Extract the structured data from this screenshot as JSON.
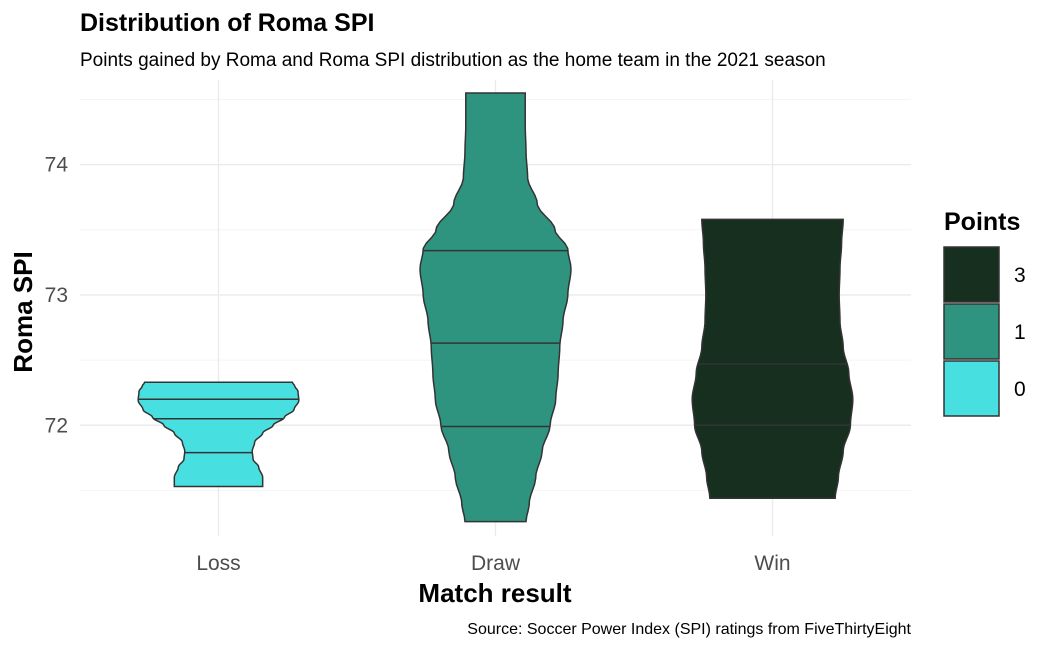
{
  "chart_data": {
    "type": "violin",
    "title": "Distribution of Roma SPI",
    "subtitle": "Points gained by Roma and Roma SPI distribution as the home team in the 2021 season",
    "caption": "Source: Soccer Power Index (SPI) ratings from FiveThirtyEight",
    "xlabel": "Match result",
    "ylabel": "Roma SPI",
    "ylim": [
      71.15,
      74.65
    ],
    "y_ticks": [
      72,
      73,
      74
    ],
    "grid": true,
    "legend": {
      "title": "Points",
      "placement": "right"
    },
    "categories": [
      "Loss",
      "Draw",
      "Win"
    ],
    "series": [
      {
        "category": "Loss",
        "points": "0",
        "color": "#48dfe0",
        "y_min": 71.53,
        "y_max": 72.33,
        "quantiles": [
          71.79,
          72.05,
          72.2
        ],
        "density_profile": [
          [
            71.53,
            0.55
          ],
          [
            71.6,
            0.55
          ],
          [
            71.68,
            0.5
          ],
          [
            71.74,
            0.43
          ],
          [
            71.8,
            0.42
          ],
          [
            71.87,
            0.45
          ],
          [
            71.94,
            0.55
          ],
          [
            72.0,
            0.68
          ],
          [
            72.06,
            0.82
          ],
          [
            72.12,
            0.94
          ],
          [
            72.19,
            1.0
          ],
          [
            72.26,
            0.99
          ],
          [
            72.3,
            0.95
          ],
          [
            72.33,
            0.92
          ]
        ]
      },
      {
        "category": "Draw",
        "points": "1",
        "color": "#2e9480",
        "y_min": 71.26,
        "y_max": 74.55,
        "quantiles": [
          71.99,
          72.63,
          73.34
        ],
        "density_profile": [
          [
            71.26,
            0.38
          ],
          [
            71.4,
            0.42
          ],
          [
            71.6,
            0.5
          ],
          [
            71.8,
            0.58
          ],
          [
            72.0,
            0.68
          ],
          [
            72.2,
            0.75
          ],
          [
            72.4,
            0.78
          ],
          [
            72.6,
            0.8
          ],
          [
            72.8,
            0.84
          ],
          [
            73.0,
            0.9
          ],
          [
            73.2,
            0.94
          ],
          [
            73.35,
            0.9
          ],
          [
            73.5,
            0.74
          ],
          [
            73.7,
            0.52
          ],
          [
            73.9,
            0.4
          ],
          [
            74.1,
            0.38
          ],
          [
            74.3,
            0.37
          ],
          [
            74.55,
            0.37
          ]
        ]
      },
      {
        "category": "Win",
        "points": "3",
        "color": "#172f1f",
        "y_min": 71.44,
        "y_max": 73.58,
        "quantiles": [
          72.0,
          72.47
        ],
        "density_profile": [
          [
            71.44,
            0.78
          ],
          [
            71.6,
            0.82
          ],
          [
            71.8,
            0.88
          ],
          [
            72.0,
            0.97
          ],
          [
            72.2,
            1.0
          ],
          [
            72.4,
            0.95
          ],
          [
            72.6,
            0.88
          ],
          [
            72.8,
            0.84
          ],
          [
            73.0,
            0.83
          ],
          [
            73.2,
            0.84
          ],
          [
            73.4,
            0.86
          ],
          [
            73.58,
            0.88
          ]
        ]
      }
    ],
    "legend_order": [
      "3",
      "1",
      "0"
    ]
  }
}
